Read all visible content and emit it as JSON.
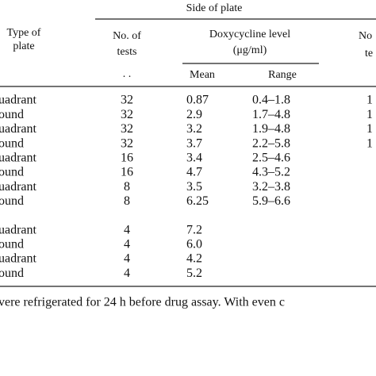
{
  "header": {
    "group": "Side of plate",
    "col_type": [
      "Type of",
      "plate"
    ],
    "col_tests": [
      "No. of",
      "tests"
    ],
    "col_doxy": [
      "Doxycycline level",
      "(μg/ml)"
    ],
    "col_right": [
      "No",
      "te"
    ],
    "dots": ". .",
    "mean": "Mean",
    "range": "Range"
  },
  "table": {
    "rows": [
      [
        "uadrant",
        "32",
        "0.87",
        "0.4–1.8",
        "1"
      ],
      [
        "ound",
        "32",
        "2.9",
        "1.7–4.8",
        "1"
      ],
      [
        "uadrant",
        "32",
        "3.2",
        "1.9–4.8",
        "1"
      ],
      [
        "ound",
        "32",
        "3.7",
        "2.2–5.8",
        "1"
      ],
      [
        "uadrant",
        "16",
        "3.4",
        "2.5–4.6"
      ],
      [
        "ound",
        "16",
        "4.7",
        "4.3–5.2"
      ],
      [
        "uadrant",
        "8",
        "3.5",
        "3.2–3.8"
      ],
      [
        "ound",
        "8",
        "6.25",
        "5.9–6.6"
      ],
      [
        "uadrant",
        "4",
        "7.2"
      ],
      [
        "ound",
        "4",
        "6.0"
      ],
      [
        "uadrant",
        "4",
        "4.2"
      ],
      [
        "ound",
        "4",
        "5.2"
      ]
    ]
  },
  "footnote": "vere refrigerated for 24 h before drug assay. With even c"
}
